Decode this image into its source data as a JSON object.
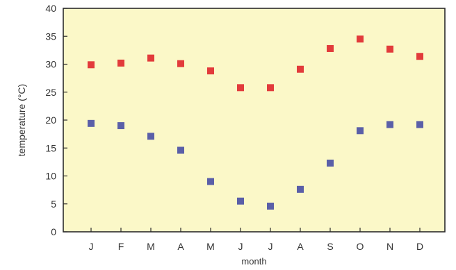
{
  "chart_data": {
    "type": "scatter",
    "title": "",
    "xlabel": "month",
    "ylabel": "temperature  (°C)",
    "categories": [
      "J",
      "F",
      "M",
      "A",
      "M",
      "J",
      "J",
      "A",
      "S",
      "O",
      "N",
      "D"
    ],
    "ylim": [
      0,
      40
    ],
    "yticks": [
      "0",
      "5",
      "10",
      "15",
      "20",
      "25",
      "30",
      "35",
      "40"
    ],
    "grid": false,
    "series": [
      {
        "color": "#e23b3b",
        "marker": "square",
        "values": [
          29.9,
          30.2,
          31.1,
          30.1,
          28.8,
          25.8,
          25.8,
          29.1,
          32.8,
          34.5,
          32.7,
          31.4
        ]
      },
      {
        "color": "#5a5fa8",
        "marker": "square",
        "values": [
          19.4,
          19.0,
          17.1,
          14.6,
          9.0,
          5.5,
          4.6,
          7.6,
          12.3,
          18.1,
          19.2,
          19.2
        ]
      }
    ],
    "plot_background": "#fbf8c8"
  }
}
